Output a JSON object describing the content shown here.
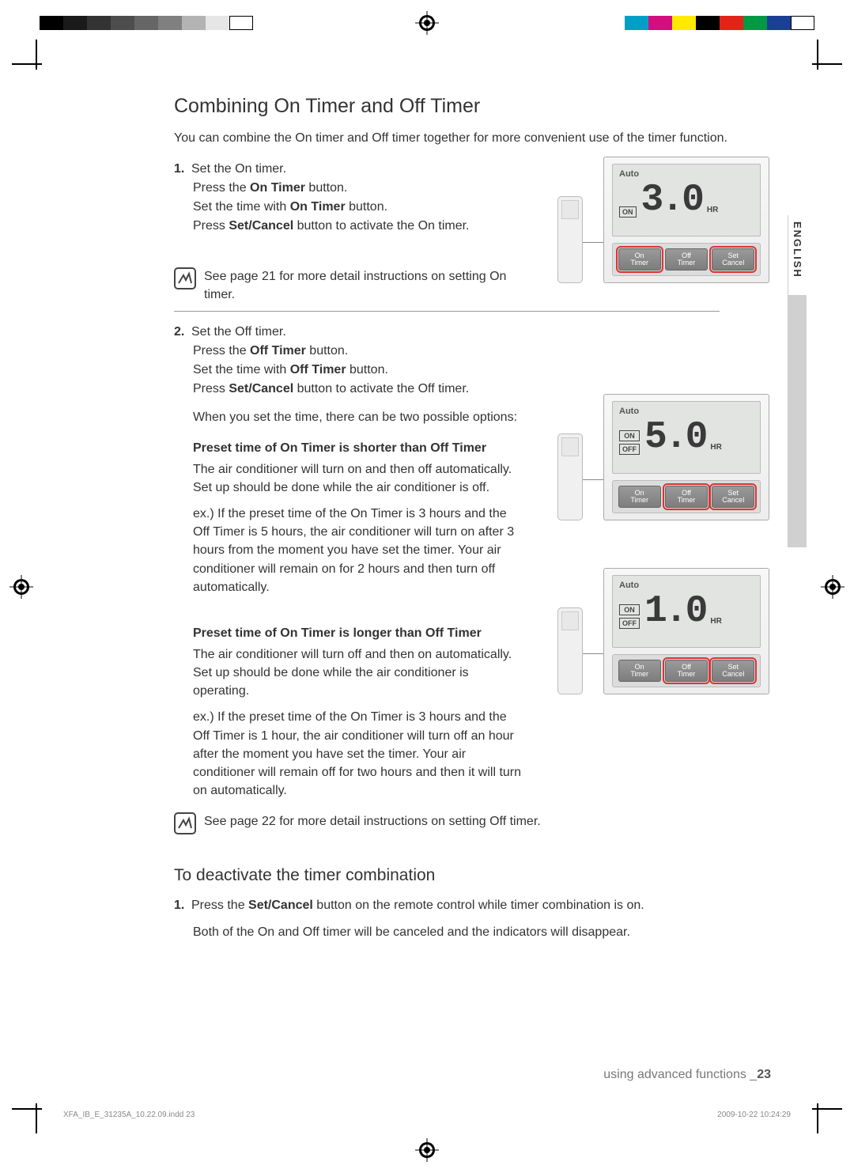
{
  "colorbar": {
    "left": [
      "#000000",
      "#1a1a1a",
      "#333333",
      "#4d4d4d",
      "#666666",
      "#808080",
      "#b3b3b3",
      "#e6e6e6",
      "#ffffff"
    ],
    "right": [
      "#00a0c6",
      "#d40f7d",
      "#ffea00",
      "#000000",
      "#e2231a",
      "#009944",
      "#1b3f94",
      "#ffffff"
    ]
  },
  "side_tab": "ENGLISH",
  "heading": "Combining On Timer and Off Timer",
  "intro": "You can combine the On timer and Off timer together for more convenient use of the timer function.",
  "step1": {
    "num": "1.",
    "l1": "Set the On timer.",
    "l2a": "Press the ",
    "l2b": "On Timer",
    "l2c": " button.",
    "l3a": "Set the time with ",
    "l3b": "On Timer",
    "l3c": " button.",
    "l4a": "Press ",
    "l4b": "Set/Cancel",
    "l4c": " button to activate the On timer."
  },
  "note1": "See page 21 for more detail instructions on setting On timer.",
  "step2": {
    "num": "2.",
    "l1": "Set the Off timer.",
    "l2a": "Press the ",
    "l2b": "Off Timer",
    "l2c": " button.",
    "l3a": "Set the time with ",
    "l3b": "Off Timer",
    "l3c": " button.",
    "l4a": "Press ",
    "l4b": "Set/Cancel",
    "l4c": " button to activate the Off timer."
  },
  "options_intro": "When you set the time, there can be two possible options:",
  "caseA": {
    "title": "Preset time of On Timer is shorter than Off Timer",
    "p1": "The air conditioner will turn on and then off automatically. Set up should be done while the air conditioner is off.",
    "p2": "ex.) If the preset time of the On Timer is 3 hours and the Off Timer is 5 hours, the air conditioner will turn on after 3 hours from the moment you have set the timer. Your air conditioner will remain on for 2 hours and then turn off automatically."
  },
  "caseB": {
    "title": "Preset time of On Timer is longer than Off Timer",
    "p1": "The air conditioner will turn off and then on automatically. Set up should be done while the air conditioner is operating.",
    "p2": "ex.) If the preset time of the On Timer is 3 hours and the Off Timer is 1 hour, the air conditioner will turn off an hour after the moment you have set the timer. Your air conditioner will remain off for two hours and then it will turn on automatically."
  },
  "note2": "See page 22 for more detail instructions on setting Off timer.",
  "deact_title": "To deactivate the timer combination",
  "deact": {
    "num": "1.",
    "l1a": "Press the ",
    "l1b": "Set/Cancel",
    "l1c": " button on the remote control while timer combination is on.",
    "l2": "Both of the On and Off timer will be canceled and the indicators will disappear."
  },
  "panel": {
    "auto": "Auto",
    "on": "ON",
    "off": "OFF",
    "hr": "HR",
    "btn_on_a": "On",
    "btn_on_b": "Timer",
    "btn_off_a": "Off",
    "btn_off_b": "Timer",
    "btn_set_a": "Set",
    "btn_set_b": "Cancel"
  },
  "fig1": {
    "digits": "3.0",
    "show_off": false,
    "highlight": [
      true,
      false,
      true
    ]
  },
  "fig2": {
    "digits": "5.0",
    "show_off": true,
    "highlight": [
      false,
      true,
      true
    ]
  },
  "fig3": {
    "digits": "1.0",
    "show_off": true,
    "highlight": [
      false,
      true,
      true
    ]
  },
  "footer": {
    "section": "using advanced functions _",
    "page": "23",
    "imprint_left": "XFA_IB_E_31235A_10.22.09.indd   23",
    "imprint_right": "2009-10-22   10:24:29"
  }
}
